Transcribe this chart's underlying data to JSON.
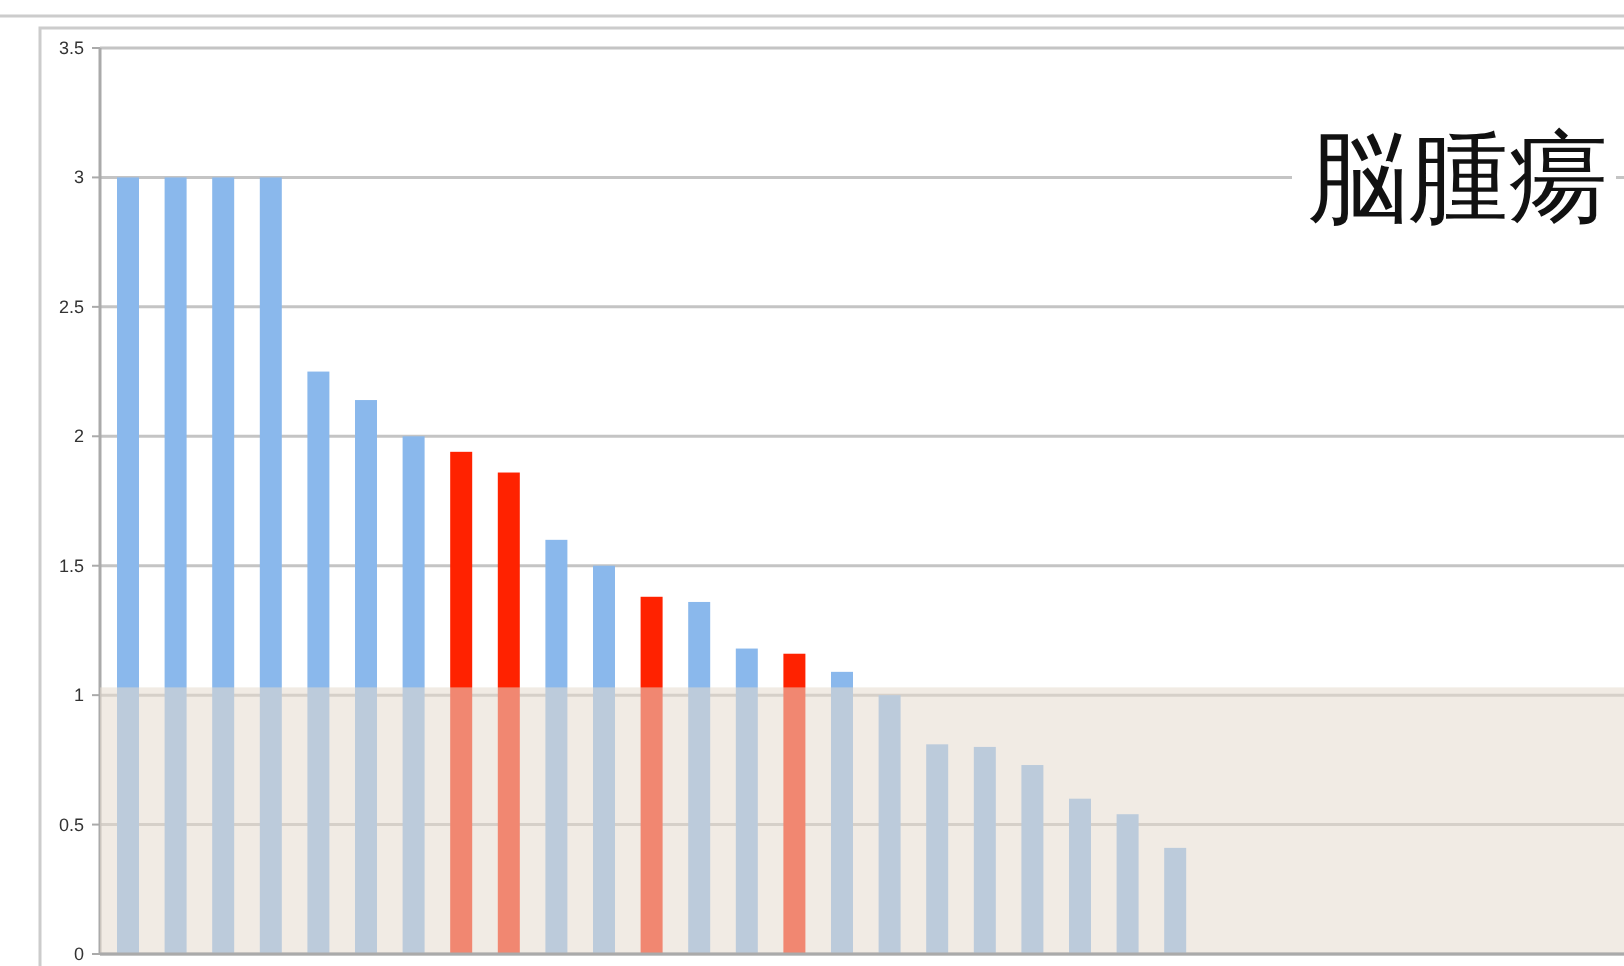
{
  "chart_data": {
    "type": "bar",
    "title": "脳腫瘍",
    "categories": [
      null,
      null,
      null,
      null,
      null,
      null,
      null,
      null,
      null,
      null,
      null,
      null,
      null,
      null,
      null,
      null,
      null,
      null,
      null,
      null,
      null,
      null,
      null
    ],
    "values": [
      3,
      3,
      3,
      3,
      2.25,
      2.14,
      2.0,
      1.94,
      1.86,
      1.6,
      1.5,
      1.38,
      1.36,
      1.18,
      1.16,
      1.09,
      1.0,
      0.81,
      0.8,
      0.73,
      0.6,
      0.54,
      0.41
    ],
    "colors": [
      "#8ab8ec",
      "#8ab8ec",
      "#8ab8ec",
      "#8ab8ec",
      "#8ab8ec",
      "#8ab8ec",
      "#8ab8ec",
      "#ff2200",
      "#ff2200",
      "#8ab8ec",
      "#8ab8ec",
      "#ff2200",
      "#8ab8ec",
      "#8ab8ec",
      "#ff2200",
      "#8ab8ec",
      "#8ab8ec",
      "#8ab8ec",
      "#8ab8ec",
      "#8ab8ec",
      "#8ab8ec",
      "#8ab8ec",
      "#8ab8ec"
    ],
    "ylim": [
      0,
      3.5
    ],
    "yticks": [
      0,
      0.5,
      1,
      1.5,
      2,
      2.5,
      3,
      3.5
    ],
    "grid": "y",
    "bands": [
      {
        "axis": "y",
        "from": 0,
        "to": 1.03,
        "color": "#e6dace"
      }
    ]
  }
}
